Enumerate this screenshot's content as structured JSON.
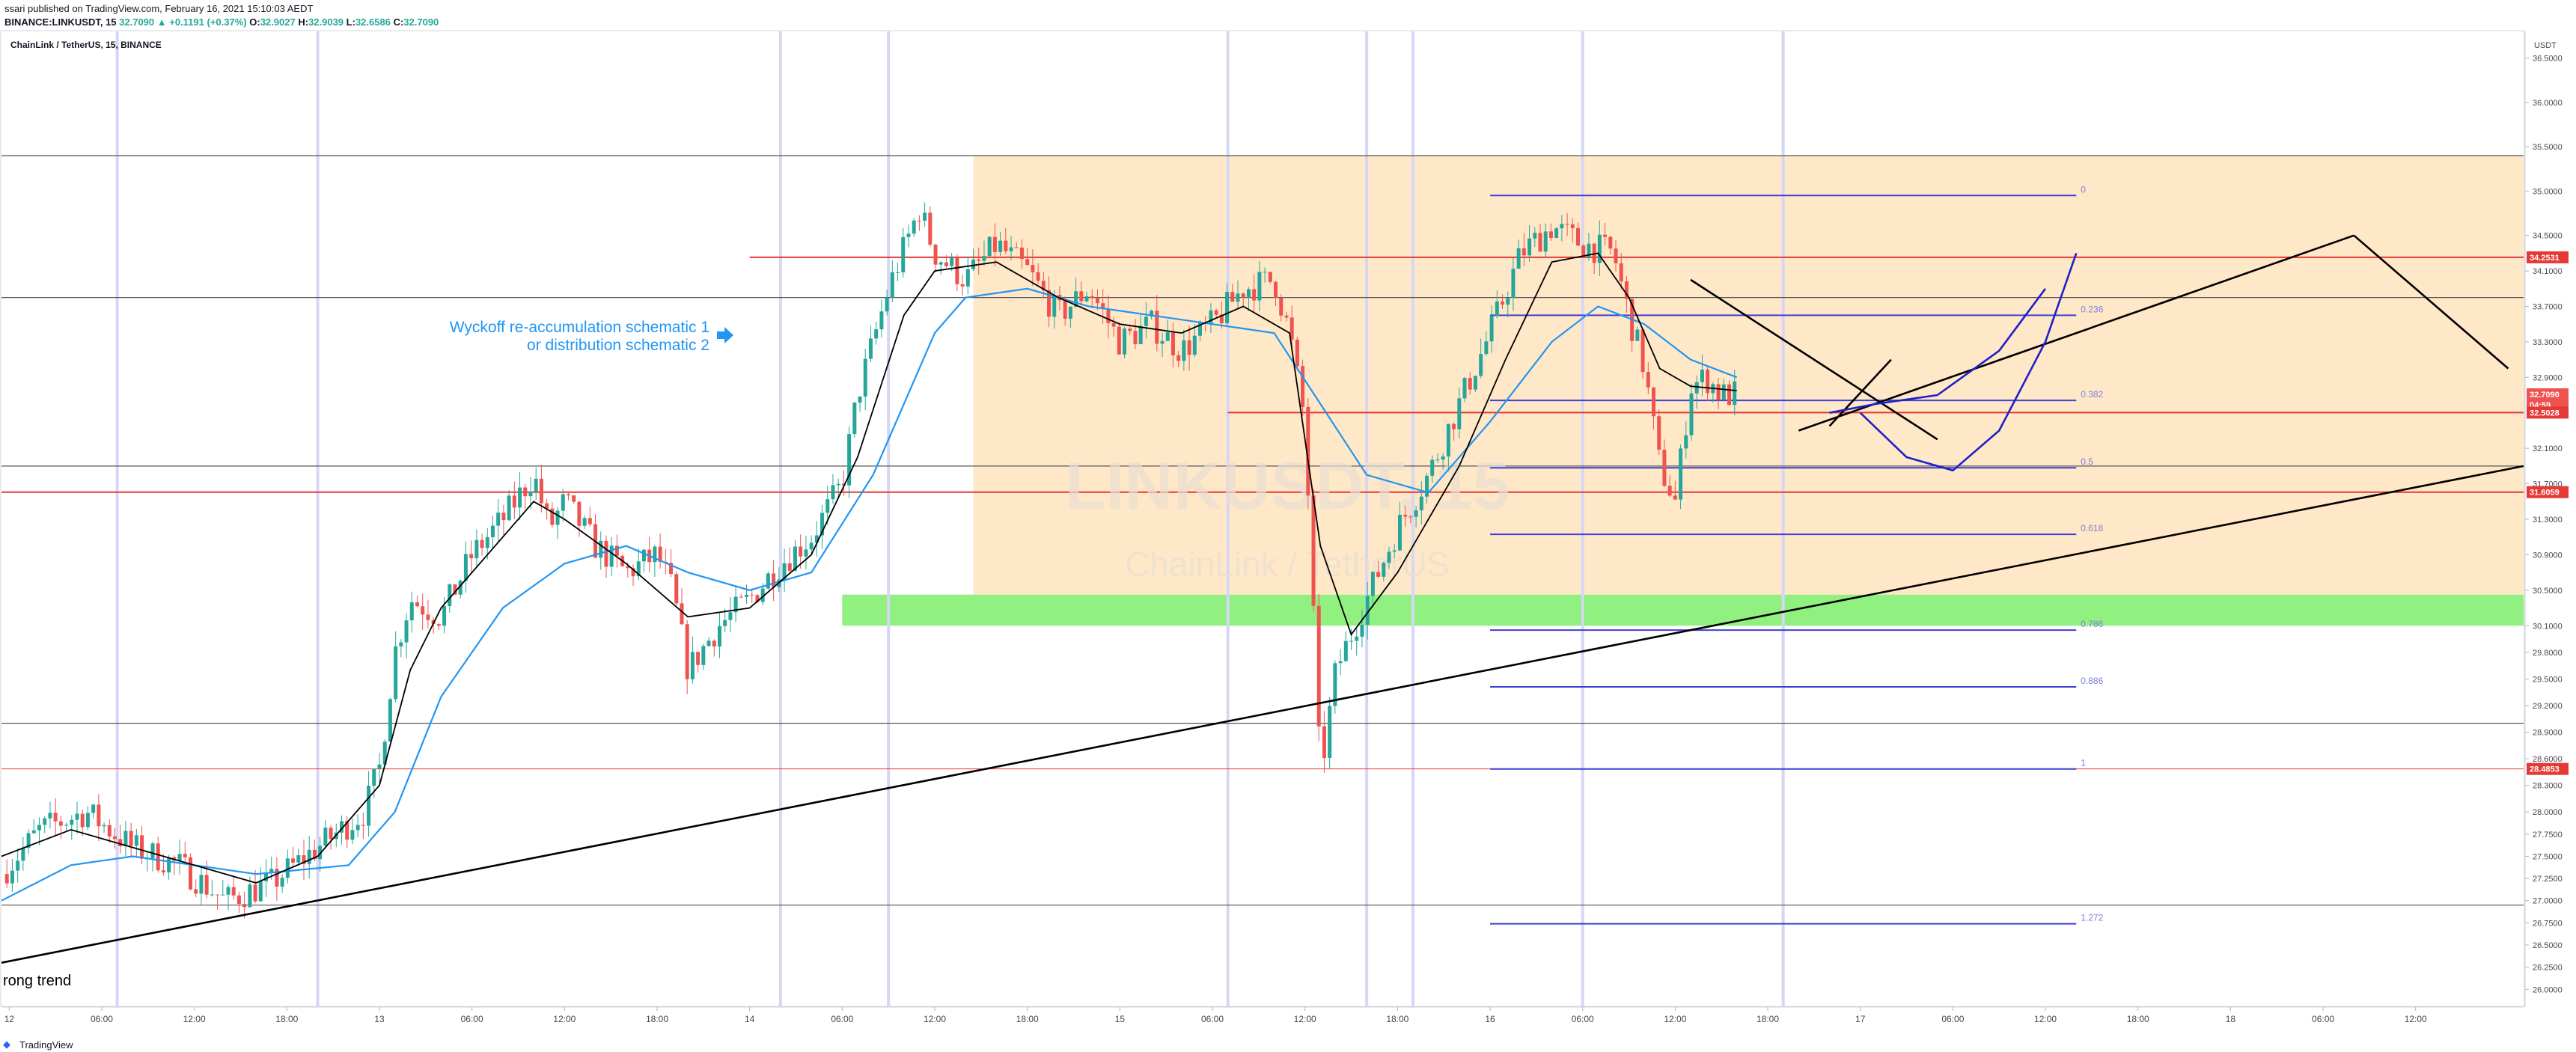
{
  "header": {
    "published_line": "ssari published on TradingView.com, February 16, 2021 15:10:03 AEDT",
    "symbol_line": "BINANCE:LINKUSDT, 15",
    "last": "32.7090",
    "change": "▲ +0.1191 (+0.37%)",
    "o_label": "O:",
    "o": "32.9027",
    "h_label": "H:",
    "h": "32.9039",
    "l_label": "L:",
    "l": "32.6586",
    "c_label": "C:",
    "c": "32.7090"
  },
  "chart_title": "ChainLink / TetherUS, 15, BINANCE",
  "watermark": {
    "symbol": "LINKUSDT, 15",
    "name": "ChainLink / TetherUS"
  },
  "annotation": {
    "line1": "Wyckoff re-accumulation schematic 1",
    "line2": "or distribution schematic 2",
    "arrow_icon": "arrow-right-icon"
  },
  "trend_label": "rong trend",
  "footer": {
    "logo_icon": "tradingview-logo-icon",
    "text": "TradingView"
  },
  "colors": {
    "up": "#26a69a",
    "down": "#ef5350",
    "ema_fast": "#000000",
    "ema_slow": "#2196f3",
    "fib": "#3f3fd6",
    "red_level": "#e53935",
    "zone_orange": "#ffe8c8",
    "zone_green": "#90f080",
    "vertical_marker": "#d6d6f5"
  },
  "chart_data": {
    "type": "candlestick",
    "price_axis_unit": "USDT",
    "ylim": [
      25.8,
      36.8
    ],
    "y_ticks": [
      "36.5000",
      "36.0000",
      "35.5000",
      "35.0000",
      "34.5000",
      "34.1000",
      "33.7000",
      "33.3000",
      "32.9000",
      "32.1000",
      "31.7000",
      "31.3000",
      "30.9000",
      "30.5000",
      "30.1000",
      "29.8000",
      "29.5000",
      "29.2000",
      "28.9000",
      "28.6000",
      "28.3000",
      "28.0000",
      "27.7500",
      "27.5000",
      "27.2500",
      "27.0000",
      "26.7500",
      "26.5000",
      "26.2500",
      "26.0000"
    ],
    "x_ticks": [
      {
        "label": "12",
        "t": 8
      },
      {
        "label": "06:00",
        "t": 14
      },
      {
        "label": "12:00",
        "t": 20
      },
      {
        "label": "18:00",
        "t": 26
      },
      {
        "label": "13",
        "t": 32
      },
      {
        "label": "06:00",
        "t": 38
      },
      {
        "label": "12:00",
        "t": 44
      },
      {
        "label": "18:00",
        "t": 50
      },
      {
        "label": "14",
        "t": 56
      },
      {
        "label": "06:00",
        "t": 62
      },
      {
        "label": "12:00",
        "t": 68
      },
      {
        "label": "18:00",
        "t": 74
      },
      {
        "label": "15",
        "t": 80
      },
      {
        "label": "06:00",
        "t": 86
      },
      {
        "label": "12:00",
        "t": 92
      },
      {
        "label": "18:00",
        "t": 98
      },
      {
        "label": "16",
        "t": 104
      },
      {
        "label": "06:00",
        "t": 110
      },
      {
        "label": "12:00",
        "t": 116
      },
      {
        "label": "18:00",
        "t": 122
      },
      {
        "label": "17",
        "t": 128
      },
      {
        "label": "06:00",
        "t": 134
      },
      {
        "label": "12:00",
        "t": 140
      },
      {
        "label": "18:00",
        "t": 146
      },
      {
        "label": "18",
        "t": 152
      },
      {
        "label": "06:00",
        "t": 158
      },
      {
        "label": "12:00",
        "t": 164
      }
    ],
    "x_range": [
      7.5,
      171
    ],
    "price_path": [
      [
        7.5,
        27.3
      ],
      [
        10,
        27.8
      ],
      [
        13,
        28.0
      ],
      [
        16,
        27.6
      ],
      [
        19,
        27.4
      ],
      [
        22,
        27.0
      ],
      [
        25,
        27.2
      ],
      [
        28,
        27.6
      ],
      [
        31,
        28.0
      ],
      [
        32,
        28.5
      ],
      [
        33,
        29.8
      ],
      [
        34,
        30.4
      ],
      [
        36,
        30.2
      ],
      [
        38,
        30.9
      ],
      [
        40,
        31.3
      ],
      [
        42,
        31.8
      ],
      [
        43,
        31.2
      ],
      [
        44,
        31.5
      ],
      [
        46,
        31.0
      ],
      [
        48,
        30.7
      ],
      [
        50,
        30.9
      ],
      [
        51,
        30.5
      ],
      [
        52,
        29.6
      ],
      [
        54,
        30.1
      ],
      [
        56,
        30.4
      ],
      [
        58,
        30.8
      ],
      [
        60,
        31.1
      ],
      [
        62,
        31.7
      ],
      [
        63,
        32.7
      ],
      [
        65,
        33.9
      ],
      [
        67,
        34.8
      ],
      [
        68,
        34.3
      ],
      [
        70,
        34.0
      ],
      [
        72,
        34.4
      ],
      [
        74,
        34.1
      ],
      [
        76,
        33.6
      ],
      [
        78,
        33.9
      ],
      [
        80,
        33.3
      ],
      [
        82,
        33.5
      ],
      [
        84,
        33.2
      ],
      [
        86,
        33.5
      ],
      [
        88,
        33.9
      ],
      [
        90,
        34.0
      ],
      [
        91,
        33.4
      ],
      [
        92,
        32.4
      ],
      [
        93,
        28.4
      ],
      [
        94,
        29.6
      ],
      [
        96,
        30.4
      ],
      [
        98,
        31.2
      ],
      [
        100,
        31.8
      ],
      [
        102,
        32.6
      ],
      [
        104,
        33.4
      ],
      [
        106,
        34.3
      ],
      [
        108,
        34.6
      ],
      [
        110,
        34.4
      ],
      [
        112,
        34.3
      ],
      [
        113,
        33.6
      ],
      [
        114,
        33.0
      ],
      [
        115,
        31.9
      ],
      [
        116,
        31.5
      ],
      [
        117,
        32.8
      ],
      [
        118,
        32.9
      ],
      [
        119,
        32.7
      ],
      [
        120,
        32.709
      ]
    ],
    "ema_fast_path": [
      [
        7.5,
        27.5
      ],
      [
        12,
        27.8
      ],
      [
        16,
        27.6
      ],
      [
        20,
        27.4
      ],
      [
        24,
        27.2
      ],
      [
        28,
        27.5
      ],
      [
        32,
        28.3
      ],
      [
        34,
        29.6
      ],
      [
        36,
        30.3
      ],
      [
        40,
        31.1
      ],
      [
        42,
        31.5
      ],
      [
        44,
        31.3
      ],
      [
        48,
        30.8
      ],
      [
        52,
        30.2
      ],
      [
        56,
        30.3
      ],
      [
        60,
        30.9
      ],
      [
        63,
        32.0
      ],
      [
        66,
        33.6
      ],
      [
        68,
        34.1
      ],
      [
        72,
        34.2
      ],
      [
        76,
        33.8
      ],
      [
        80,
        33.5
      ],
      [
        84,
        33.4
      ],
      [
        88,
        33.7
      ],
      [
        91,
        33.4
      ],
      [
        93,
        31.0
      ],
      [
        95,
        30.0
      ],
      [
        98,
        30.7
      ],
      [
        102,
        31.9
      ],
      [
        105,
        33.1
      ],
      [
        108,
        34.2
      ],
      [
        111,
        34.3
      ],
      [
        113,
        33.8
      ],
      [
        115,
        33.0
      ],
      [
        117,
        32.8
      ],
      [
        120,
        32.75
      ]
    ],
    "ema_slow_path": [
      [
        7.5,
        27.0
      ],
      [
        12,
        27.4
      ],
      [
        16,
        27.5
      ],
      [
        20,
        27.4
      ],
      [
        24,
        27.3
      ],
      [
        30,
        27.4
      ],
      [
        33,
        28.0
      ],
      [
        36,
        29.3
      ],
      [
        40,
        30.3
      ],
      [
        44,
        30.8
      ],
      [
        48,
        31.0
      ],
      [
        52,
        30.7
      ],
      [
        56,
        30.5
      ],
      [
        60,
        30.7
      ],
      [
        64,
        31.8
      ],
      [
        66,
        32.6
      ],
      [
        68,
        33.4
      ],
      [
        70,
        33.8
      ],
      [
        74,
        33.9
      ],
      [
        78,
        33.7
      ],
      [
        82,
        33.6
      ],
      [
        86,
        33.5
      ],
      [
        90,
        33.4
      ],
      [
        93,
        32.6
      ],
      [
        96,
        31.8
      ],
      [
        100,
        31.6
      ],
      [
        104,
        32.4
      ],
      [
        108,
        33.3
      ],
      [
        111,
        33.7
      ],
      [
        114,
        33.5
      ],
      [
        117,
        33.1
      ],
      [
        120,
        32.9
      ]
    ],
    "fibonacci": [
      {
        "level": "0",
        "price": 34.95
      },
      {
        "level": "0.236",
        "price": 33.6
      },
      {
        "level": "0.382",
        "price": 32.64
      },
      {
        "level": "0.5",
        "price": 31.88
      },
      {
        "level": "0.618",
        "price": 31.13
      },
      {
        "level": "0.786",
        "price": 30.05
      },
      {
        "level": "0.886",
        "price": 29.41
      },
      {
        "level": "1",
        "price": 28.485
      },
      {
        "level": "1.272",
        "price": 26.74
      }
    ],
    "fib_x_range": [
      104,
      142
    ],
    "price_labels": [
      {
        "text": "34.2531",
        "price": 34.2531,
        "color": "#e53935"
      },
      {
        "text": "32.7090",
        "price": 32.709,
        "color": "#ef5350"
      },
      {
        "text": "04:59",
        "price": 32.59,
        "color": "#ef5350"
      },
      {
        "text": "32.5028",
        "price": 32.5028,
        "color": "#e53935"
      },
      {
        "text": "31.6059",
        "price": 31.6059,
        "color": "#e53935"
      },
      {
        "text": "28.4853",
        "price": 28.4853,
        "color": "#e53935"
      }
    ],
    "red_levels": [
      {
        "price": 34.2531,
        "x_start": 56
      },
      {
        "price": 32.5028,
        "x_start": 87
      },
      {
        "price": 31.6059,
        "x_start": 7.5
      },
      {
        "price": 28.4853,
        "x_start": 7.5,
        "thin": true
      }
    ],
    "black_levels": [
      35.4,
      33.8,
      31.9,
      29.0,
      26.95
    ],
    "orange_zone": {
      "x_start": 70.5,
      "x_end": 171,
      "price_top": 35.4,
      "price_bottom": 30.45
    },
    "green_zone": {
      "x_start": 62,
      "x_end": 171,
      "price_top": 30.45,
      "price_bottom": 30.1
    },
    "vertical_markers": [
      15,
      28,
      58,
      65,
      87,
      96,
      99,
      110,
      123
    ],
    "trend_lines": [
      [
        [
          7.5,
          26.3
        ],
        [
          171,
          31.9
        ]
      ],
      [
        [
          124,
          32.3
        ],
        [
          160,
          34.5
        ]
      ],
      [
        [
          160,
          34.5
        ],
        [
          170,
          33.0
        ]
      ],
      [
        [
          117,
          34.0
        ],
        [
          133,
          32.2
        ]
      ],
      [
        [
          126,
          32.35
        ],
        [
          130,
          33.1
        ]
      ]
    ],
    "projection_curves": [
      [
        [
          128,
          32.5
        ],
        [
          131,
          32.0
        ],
        [
          134,
          31.85
        ],
        [
          137,
          32.3
        ],
        [
          140,
          33.3
        ],
        [
          142,
          34.3
        ]
      ],
      [
        [
          126,
          32.5
        ],
        [
          129,
          32.6
        ],
        [
          133,
          32.7
        ],
        [
          137,
          33.2
        ],
        [
          140,
          33.9
        ]
      ]
    ]
  }
}
